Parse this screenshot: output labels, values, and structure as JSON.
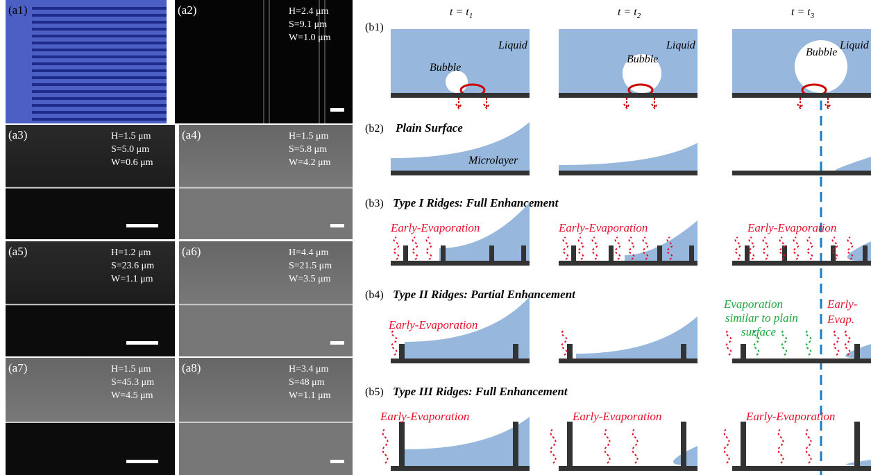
{
  "panels_a": [
    {
      "label": "(a1)",
      "lines": []
    },
    {
      "label": "(a2)",
      "lines": [
        "H=2.4 μm",
        "S=9.1 μm",
        "W=1.0 μm"
      ]
    },
    {
      "label": "(a3)",
      "lines": [
        "H=1.5 μm",
        "S=5.0 μm",
        "W=0.6 μm"
      ]
    },
    {
      "label": "(a4)",
      "lines": [
        "H=1.5 μm",
        "S=5.8 μm",
        "W=4.2 μm"
      ]
    },
    {
      "label": "(a5)",
      "lines": [
        "H=1.2 μm",
        "S=23.6 μm",
        "W=1.1 μm"
      ]
    },
    {
      "label": "(a6)",
      "lines": [
        "H=4.4 μm",
        "S=21.5 μm",
        "W=3.5 μm"
      ]
    },
    {
      "label": "(a7)",
      "lines": [
        "H=1.5 μm",
        "S=45.3 μm",
        "W=4.5 μm"
      ]
    },
    {
      "label": "(a8)",
      "lines": [
        "H=3.4 μm",
        "S=48 μm",
        "W=1.1 μm"
      ]
    }
  ],
  "panels_b": {
    "times": [
      {
        "text": "t = t",
        "sub": "1"
      },
      {
        "text": "t = t",
        "sub": "2"
      },
      {
        "text": "t = t",
        "sub": "3"
      }
    ],
    "b1": {
      "label": "(b1)",
      "liquid": [
        "Liquid",
        "Liquid",
        "Liquid"
      ],
      "bubble": [
        "Bubble",
        "Bubble",
        "Bubble"
      ]
    },
    "b2": {
      "label": "(b2)",
      "title": "Plain Surface",
      "microlayer": "Microlayer"
    },
    "b3": {
      "label": "(b3)",
      "title": "Type I Ridges: Full Enhancement",
      "notes": [
        "Early-Evaporation",
        "Early-Evaporation",
        "Early-Evaporation"
      ]
    },
    "b4": {
      "label": "(b4)",
      "title": "Type II Ridges: Partial Enhancement",
      "notes": [
        "Early-Evaporation"
      ],
      "similar": [
        "Evaporation",
        "similar to plain",
        "surface"
      ],
      "early": [
        "Early-",
        "Evap."
      ]
    },
    "b5": {
      "label": "(b5)",
      "title": "Type III Ridges: Full Enhancement",
      "notes": [
        "Early-Evaporation",
        "Early-Evaporation",
        "Early-Evaporation"
      ]
    }
  }
}
